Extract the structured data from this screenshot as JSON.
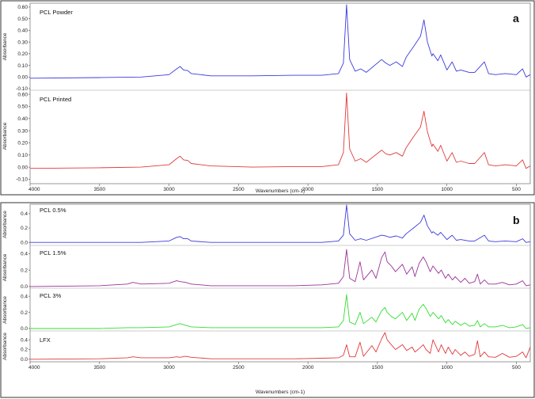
{
  "figures": [
    {
      "letter": "a",
      "xlabel": "Wavenumbers (cm-1)",
      "xticks": [
        "4000",
        "3500",
        "3000",
        "2500",
        "2000",
        "1500",
        "1000",
        "500"
      ]
    },
    {
      "letter": "b",
      "xlabel": "Wavenumbers (cm-1)",
      "xticks": [
        "4000",
        "3500",
        "3000",
        "2500",
        "2000",
        "1500",
        "1000",
        "500"
      ]
    }
  ],
  "chart_data": [
    {
      "type": "line",
      "figure": "a",
      "title": "PCL Powder",
      "ylabel": "Absorbance",
      "color": "#3a3adf",
      "xlim": [
        4000,
        400
      ],
      "ylim": [
        -0.1,
        0.62
      ],
      "yticks": [
        "0.60",
        "0.50",
        "0.40",
        "0.30",
        "0.20",
        "0.10",
        "0.00",
        "-0.10"
      ],
      "ytick_values": [
        0.6,
        0.5,
        0.4,
        0.3,
        0.2,
        0.1,
        0.0,
        -0.1
      ],
      "x": [
        4000,
        3500,
        3200,
        3000,
        2945,
        2920,
        2895,
        2865,
        2840,
        2700,
        2400,
        2100,
        1900,
        1780,
        1745,
        1722,
        1700,
        1660,
        1620,
        1580,
        1470,
        1440,
        1410,
        1365,
        1320,
        1293,
        1240,
        1190,
        1165,
        1140,
        1108,
        1100,
        1065,
        1045,
        1000,
        962,
        932,
        900,
        840,
        800,
        730,
        700,
        650,
        580,
        500,
        455,
        430,
        400
      ],
      "y": [
        -0.01,
        -0.005,
        0.0,
        0.02,
        0.07,
        0.09,
        0.06,
        0.055,
        0.03,
        0.01,
        0.01,
        0.015,
        0.015,
        0.03,
        0.12,
        0.62,
        0.15,
        0.05,
        0.07,
        0.04,
        0.15,
        0.12,
        0.1,
        0.13,
        0.09,
        0.17,
        0.26,
        0.35,
        0.49,
        0.3,
        0.18,
        0.2,
        0.14,
        0.19,
        0.06,
        0.13,
        0.05,
        0.06,
        0.04,
        0.04,
        0.13,
        0.03,
        0.02,
        0.03,
        0.02,
        0.07,
        0.0,
        0.02
      ]
    },
    {
      "type": "line",
      "figure": "a",
      "title": "PCL Printed",
      "ylabel": "Absorbance",
      "color": "#e03a3a",
      "xlim": [
        4000,
        400
      ],
      "ylim": [
        -0.11,
        0.62
      ],
      "yticks": [
        "0.60",
        "0.50",
        "0.40",
        "0.30",
        "0.20",
        "0.10",
        "0.00",
        "-0.10"
      ],
      "ytick_values": [
        0.6,
        0.5,
        0.4,
        0.3,
        0.2,
        0.1,
        0.0,
        -0.1
      ],
      "x": [
        4000,
        3500,
        3200,
        3000,
        2945,
        2920,
        2895,
        2865,
        2840,
        2700,
        2400,
        2100,
        1900,
        1780,
        1745,
        1722,
        1700,
        1660,
        1620,
        1580,
        1470,
        1440,
        1410,
        1365,
        1320,
        1293,
        1240,
        1190,
        1165,
        1140,
        1108,
        1100,
        1065,
        1045,
        1000,
        962,
        932,
        900,
        840,
        800,
        730,
        700,
        650,
        580,
        500,
        455,
        430,
        400
      ],
      "y": [
        -0.01,
        -0.005,
        0.0,
        0.02,
        0.07,
        0.09,
        0.06,
        0.055,
        0.03,
        0.01,
        0.0,
        0.005,
        0.005,
        0.02,
        0.12,
        0.61,
        0.15,
        0.05,
        0.07,
        0.04,
        0.14,
        0.11,
        0.1,
        0.12,
        0.09,
        0.16,
        0.25,
        0.33,
        0.46,
        0.29,
        0.17,
        0.19,
        0.13,
        0.18,
        0.05,
        0.12,
        0.04,
        0.05,
        0.03,
        0.03,
        0.12,
        0.02,
        0.01,
        0.02,
        0.01,
        0.06,
        -0.01,
        0.01
      ]
    },
    {
      "type": "line",
      "figure": "b",
      "title": "PCL 0.5%",
      "ylabel": "Absorbance",
      "color": "#3a3adf",
      "xlim": [
        4000,
        400
      ],
      "ylim": [
        -0.02,
        0.52
      ],
      "yticks": [
        "0.4",
        "0.2",
        "0.0"
      ],
      "ytick_values": [
        0.4,
        0.2,
        0.0
      ],
      "x": [
        4000,
        3500,
        3200,
        3000,
        2945,
        2920,
        2895,
        2865,
        2840,
        2700,
        2400,
        2100,
        1900,
        1780,
        1745,
        1722,
        1700,
        1660,
        1620,
        1580,
        1470,
        1440,
        1410,
        1365,
        1320,
        1293,
        1240,
        1190,
        1165,
        1140,
        1108,
        1100,
        1065,
        1045,
        1000,
        962,
        932,
        900,
        840,
        800,
        730,
        700,
        650,
        580,
        500,
        455,
        430,
        400
      ],
      "y": [
        0.0,
        0.0,
        0.0,
        0.02,
        0.07,
        0.08,
        0.05,
        0.05,
        0.02,
        0.0,
        0.0,
        0.0,
        0.0,
        0.02,
        0.1,
        0.52,
        0.12,
        0.03,
        0.05,
        0.03,
        0.1,
        0.09,
        0.07,
        0.09,
        0.06,
        0.12,
        0.2,
        0.28,
        0.38,
        0.23,
        0.13,
        0.15,
        0.1,
        0.14,
        0.04,
        0.1,
        0.03,
        0.04,
        0.02,
        0.02,
        0.1,
        0.02,
        0.01,
        0.02,
        0.01,
        0.05,
        0.0,
        0.01
      ]
    },
    {
      "type": "line",
      "figure": "b",
      "title": "PCL 1.5%",
      "ylabel": "Absorbance",
      "color": "#993399",
      "xlim": [
        4000,
        400
      ],
      "ylim": [
        -0.02,
        0.48
      ],
      "yticks": [
        "0.4",
        "0.2",
        "0.0"
      ],
      "ytick_values": [
        0.4,
        0.2,
        0.0
      ],
      "x": [
        4000,
        3500,
        3300,
        3260,
        3200,
        3000,
        2945,
        2920,
        2880,
        2840,
        2700,
        2400,
        2100,
        1900,
        1780,
        1745,
        1722,
        1700,
        1660,
        1625,
        1600,
        1540,
        1510,
        1470,
        1445,
        1430,
        1400,
        1370,
        1320,
        1290,
        1250,
        1230,
        1200,
        1170,
        1150,
        1120,
        1100,
        1060,
        1040,
        1010,
        990,
        960,
        940,
        900,
        870,
        840,
        800,
        780,
        760,
        730,
        700,
        650,
        600,
        550,
        500,
        455,
        430,
        400
      ],
      "y": [
        0.0,
        0.01,
        0.03,
        0.05,
        0.03,
        0.04,
        0.07,
        0.06,
        0.05,
        0.03,
        0.01,
        0.01,
        0.01,
        0.02,
        0.04,
        0.12,
        0.45,
        0.1,
        0.06,
        0.3,
        0.08,
        0.2,
        0.1,
        0.35,
        0.42,
        0.3,
        0.25,
        0.18,
        0.27,
        0.15,
        0.24,
        0.12,
        0.28,
        0.36,
        0.3,
        0.18,
        0.25,
        0.16,
        0.2,
        0.1,
        0.15,
        0.08,
        0.12,
        0.05,
        0.1,
        0.04,
        0.06,
        0.15,
        0.03,
        0.08,
        0.03,
        0.03,
        0.05,
        0.02,
        0.03,
        0.07,
        0.01,
        0.02
      ]
    },
    {
      "type": "line",
      "figure": "b",
      "title": "PCL 3%",
      "ylabel": "Absorbance",
      "color": "#33dd33",
      "xlim": [
        4000,
        400
      ],
      "ylim": [
        -0.02,
        0.48
      ],
      "yticks": [
        "0.4",
        "0.2",
        "0.0"
      ],
      "ytick_values": [
        0.4,
        0.2,
        0.0
      ],
      "x": [
        4000,
        3500,
        3300,
        3200,
        3000,
        2945,
        2920,
        2880,
        2840,
        2700,
        2400,
        2100,
        1900,
        1780,
        1745,
        1722,
        1700,
        1660,
        1625,
        1600,
        1540,
        1510,
        1470,
        1445,
        1430,
        1400,
        1370,
        1320,
        1290,
        1250,
        1230,
        1200,
        1170,
        1150,
        1120,
        1100,
        1060,
        1040,
        1010,
        990,
        960,
        940,
        900,
        870,
        840,
        800,
        780,
        760,
        730,
        700,
        650,
        600,
        550,
        500,
        455,
        430,
        400
      ],
      "y": [
        0.0,
        0.0,
        0.01,
        0.01,
        0.02,
        0.05,
        0.06,
        0.04,
        0.02,
        0.01,
        0.01,
        0.01,
        0.01,
        0.02,
        0.1,
        0.42,
        0.08,
        0.05,
        0.2,
        0.06,
        0.14,
        0.08,
        0.22,
        0.26,
        0.2,
        0.15,
        0.12,
        0.2,
        0.1,
        0.19,
        0.1,
        0.24,
        0.3,
        0.25,
        0.15,
        0.2,
        0.12,
        0.16,
        0.07,
        0.11,
        0.05,
        0.09,
        0.04,
        0.07,
        0.03,
        0.04,
        0.1,
        0.02,
        0.06,
        0.02,
        0.02,
        0.04,
        0.01,
        0.02,
        0.05,
        0.0,
        0.01
      ]
    },
    {
      "type": "line",
      "figure": "b",
      "title": "LFX",
      "ylabel": "Absorbance",
      "color": "#e03a3a",
      "xlim": [
        4000,
        400
      ],
      "ylim": [
        -0.02,
        0.55
      ],
      "yticks": [
        "0.4",
        "0.2",
        "0.0"
      ],
      "ytick_values": [
        0.4,
        0.2,
        0.0
      ],
      "x": [
        4000,
        3500,
        3300,
        3260,
        3200,
        3000,
        2945,
        2920,
        2880,
        2840,
        2700,
        2400,
        2100,
        1900,
        1780,
        1745,
        1722,
        1700,
        1660,
        1625,
        1600,
        1540,
        1510,
        1470,
        1445,
        1430,
        1400,
        1370,
        1320,
        1290,
        1250,
        1230,
        1200,
        1170,
        1150,
        1120,
        1100,
        1060,
        1040,
        1010,
        990,
        960,
        940,
        900,
        870,
        840,
        800,
        780,
        760,
        730,
        700,
        650,
        600,
        550,
        500,
        455,
        430,
        400
      ],
      "y": [
        0.0,
        0.01,
        0.03,
        0.05,
        0.03,
        0.03,
        0.05,
        0.04,
        0.06,
        0.04,
        0.01,
        0.01,
        0.01,
        0.02,
        0.03,
        0.08,
        0.3,
        0.05,
        0.05,
        0.35,
        0.06,
        0.28,
        0.15,
        0.42,
        0.55,
        0.4,
        0.3,
        0.2,
        0.3,
        0.18,
        0.25,
        0.15,
        0.22,
        0.3,
        0.2,
        0.12,
        0.4,
        0.15,
        0.3,
        0.12,
        0.25,
        0.1,
        0.2,
        0.08,
        0.15,
        0.06,
        0.1,
        0.38,
        0.05,
        0.15,
        0.05,
        0.04,
        0.12,
        0.04,
        0.06,
        0.15,
        0.03,
        0.25
      ]
    }
  ]
}
